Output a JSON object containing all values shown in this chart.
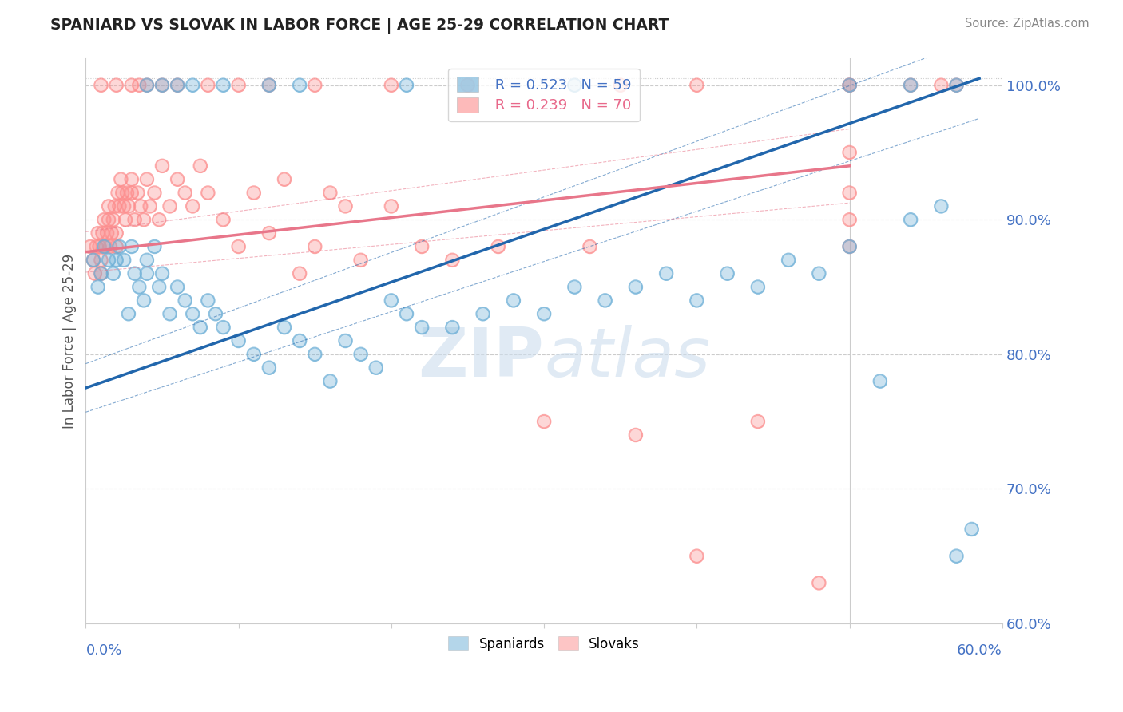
{
  "title": "SPANIARD VS SLOVAK IN LABOR FORCE | AGE 25-29 CORRELATION CHART",
  "source": "Source: ZipAtlas.com",
  "ylabel": "In Labor Force | Age 25-29",
  "ylabel_right_ticks": [
    "100.0%",
    "90.0%",
    "80.0%",
    "70.0%",
    "60.0%"
  ],
  "ylabel_right_vals": [
    1.0,
    0.9,
    0.8,
    0.7,
    0.6
  ],
  "xmin": 0.0,
  "xmax": 0.6,
  "ymin": 0.6,
  "ymax": 1.02,
  "blue_R": 0.523,
  "blue_N": 59,
  "pink_R": 0.239,
  "pink_N": 70,
  "blue_color": "#6baed6",
  "pink_color": "#fc8d8d",
  "blue_line_color": "#2166ac",
  "pink_line_color": "#e8768a",
  "legend_label_blue": "Spaniards",
  "legend_label_pink": "Slovaks",
  "blue_line_x0": 0.0,
  "blue_line_y0": 0.775,
  "blue_line_x1": 0.585,
  "blue_line_y1": 1.005,
  "pink_line_x0": 0.0,
  "pink_line_x1": 0.5,
  "pink_line_y0": 0.876,
  "pink_line_y1": 0.94,
  "blue_scatter_x": [
    0.005,
    0.008,
    0.01,
    0.012,
    0.015,
    0.018,
    0.02,
    0.022,
    0.025,
    0.028,
    0.03,
    0.032,
    0.035,
    0.038,
    0.04,
    0.04,
    0.045,
    0.048,
    0.05,
    0.055,
    0.06,
    0.065,
    0.07,
    0.075,
    0.08,
    0.085,
    0.09,
    0.1,
    0.11,
    0.12,
    0.13,
    0.14,
    0.15,
    0.16,
    0.17,
    0.18,
    0.19,
    0.2,
    0.21,
    0.22,
    0.24,
    0.26,
    0.28,
    0.3,
    0.32,
    0.34,
    0.36,
    0.38,
    0.4,
    0.42,
    0.44,
    0.46,
    0.48,
    0.5,
    0.52,
    0.54,
    0.56,
    0.57,
    0.58
  ],
  "blue_scatter_y": [
    0.87,
    0.85,
    0.86,
    0.88,
    0.87,
    0.86,
    0.87,
    0.88,
    0.87,
    0.83,
    0.88,
    0.86,
    0.85,
    0.84,
    0.87,
    0.86,
    0.88,
    0.85,
    0.86,
    0.83,
    0.85,
    0.84,
    0.83,
    0.82,
    0.84,
    0.83,
    0.82,
    0.81,
    0.8,
    0.79,
    0.82,
    0.81,
    0.8,
    0.78,
    0.81,
    0.8,
    0.79,
    0.84,
    0.83,
    0.82,
    0.82,
    0.83,
    0.84,
    0.83,
    0.85,
    0.84,
    0.85,
    0.86,
    0.84,
    0.86,
    0.85,
    0.87,
    0.86,
    0.88,
    0.78,
    0.9,
    0.91,
    0.65,
    0.67
  ],
  "pink_scatter_x": [
    0.003,
    0.005,
    0.006,
    0.007,
    0.008,
    0.009,
    0.01,
    0.01,
    0.011,
    0.012,
    0.013,
    0.014,
    0.015,
    0.015,
    0.016,
    0.017,
    0.018,
    0.019,
    0.02,
    0.02,
    0.021,
    0.022,
    0.023,
    0.024,
    0.025,
    0.026,
    0.027,
    0.028,
    0.03,
    0.03,
    0.032,
    0.034,
    0.036,
    0.038,
    0.04,
    0.042,
    0.045,
    0.048,
    0.05,
    0.055,
    0.06,
    0.065,
    0.07,
    0.075,
    0.08,
    0.09,
    0.1,
    0.11,
    0.12,
    0.13,
    0.14,
    0.15,
    0.16,
    0.17,
    0.18,
    0.2,
    0.22,
    0.24,
    0.27,
    0.3,
    0.33,
    0.36,
    0.4,
    0.44,
    0.48,
    0.5,
    0.5,
    0.5,
    0.5,
    0.5
  ],
  "pink_scatter_y": [
    0.88,
    0.87,
    0.86,
    0.88,
    0.89,
    0.88,
    0.87,
    0.86,
    0.89,
    0.9,
    0.88,
    0.89,
    0.9,
    0.91,
    0.88,
    0.89,
    0.9,
    0.91,
    0.89,
    0.88,
    0.92,
    0.91,
    0.93,
    0.92,
    0.91,
    0.9,
    0.92,
    0.91,
    0.93,
    0.92,
    0.9,
    0.92,
    0.91,
    0.9,
    0.93,
    0.91,
    0.92,
    0.9,
    0.94,
    0.91,
    0.93,
    0.92,
    0.91,
    0.94,
    0.92,
    0.9,
    0.88,
    0.92,
    0.89,
    0.93,
    0.86,
    0.88,
    0.92,
    0.91,
    0.87,
    0.91,
    0.88,
    0.87,
    0.88,
    0.75,
    0.88,
    0.74,
    0.65,
    0.75,
    0.63,
    0.9,
    0.88,
    0.92,
    0.95,
    1.0
  ],
  "top_pink_x": [
    0.01,
    0.02,
    0.03,
    0.035,
    0.04,
    0.05,
    0.06,
    0.08,
    0.1,
    0.12,
    0.15,
    0.2,
    0.25,
    0.35,
    0.4,
    0.5,
    0.54,
    0.56,
    0.57
  ],
  "top_pink_y": [
    1.0,
    1.0,
    1.0,
    1.0,
    1.0,
    1.0,
    1.0,
    1.0,
    1.0,
    1.0,
    1.0,
    1.0,
    1.0,
    1.0,
    1.0,
    1.0,
    1.0,
    1.0,
    1.0
  ],
  "top_blue_x": [
    0.04,
    0.05,
    0.06,
    0.07,
    0.09,
    0.12,
    0.14,
    0.21,
    0.32,
    0.5,
    0.54,
    0.57
  ],
  "top_blue_y": [
    1.0,
    1.0,
    1.0,
    1.0,
    1.0,
    1.0,
    1.0,
    1.0,
    1.0,
    1.0,
    1.0,
    1.0
  ]
}
